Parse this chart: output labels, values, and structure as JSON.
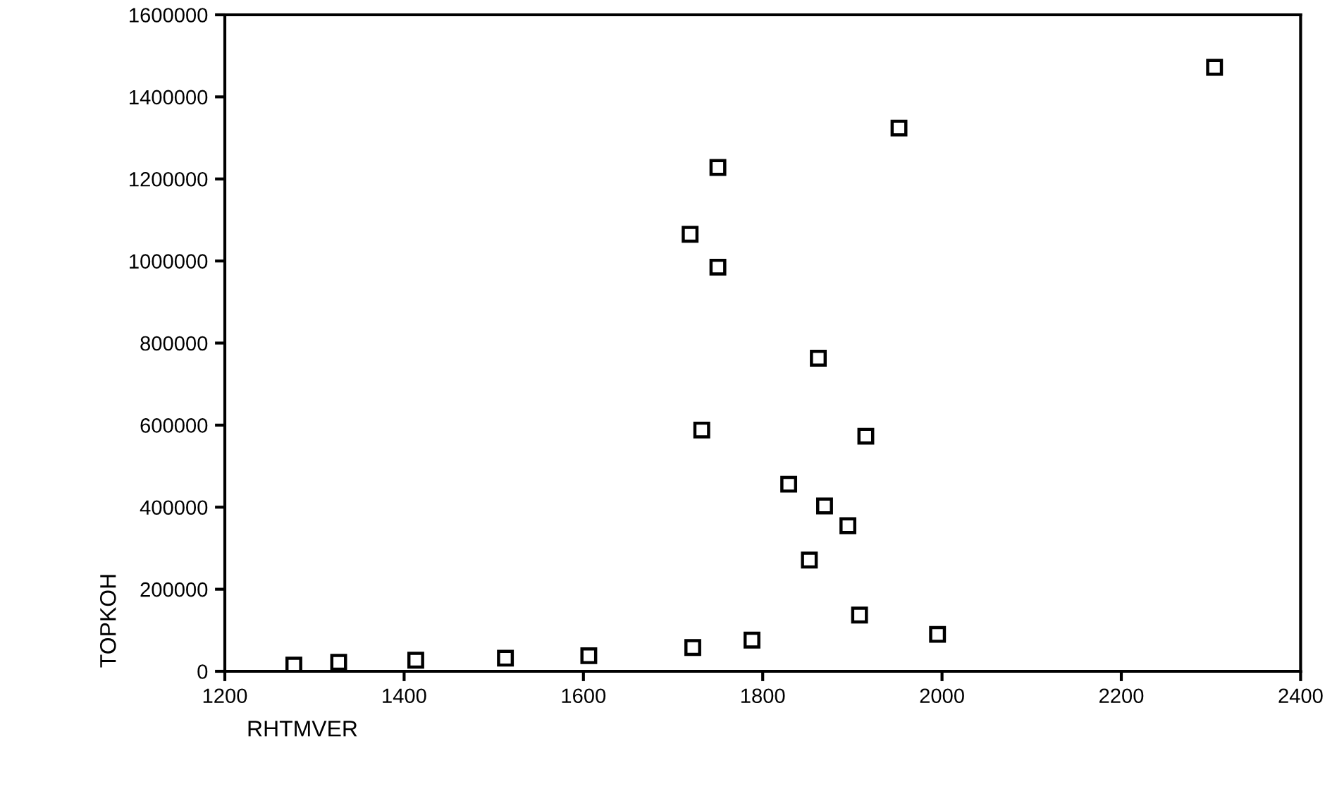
{
  "chart_data": {
    "type": "scatter",
    "xlabel": "RHTMVER",
    "ylabel": "TOPKOH",
    "x": [
      1277,
      1327,
      1413,
      1513,
      1606,
      1722,
      1788,
      1732,
      1915,
      1829,
      1869,
      1895,
      1852,
      1908,
      1995,
      2304,
      1952,
      1750,
      1719,
      1750,
      1862
    ],
    "values": [
      15000,
      22000,
      27000,
      32000,
      38000,
      58000,
      76000,
      588000,
      573000,
      456000,
      403000,
      355000,
      271000,
      137000,
      90000,
      1472000,
      1324000,
      1228000,
      1065000,
      985000,
      763000
    ],
    "color": "#000000",
    "marker": "square",
    "xlim": [
      1200,
      2400
    ],
    "xticks": [
      1200,
      1400,
      1600,
      1800,
      2000,
      2200,
      2400
    ],
    "ylim": [
      0,
      1600000
    ],
    "yticks": [
      0,
      200000,
      400000,
      600000,
      800000,
      1000000,
      1200000,
      1400000,
      1600000
    ],
    "grid": false,
    "legend": false
  }
}
